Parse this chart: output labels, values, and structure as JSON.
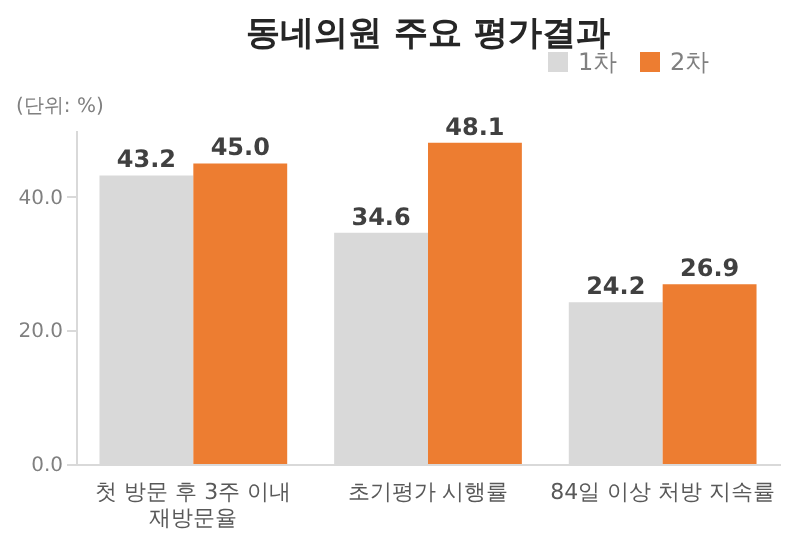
{
  "chart_data": {
    "type": "bar",
    "title": "동네의원 주요 평가결과",
    "annotations": [
      "(단위: %)"
    ],
    "categories": [
      "첫 방문 후 3주 이내\n재방문율",
      "초기평가 시행률",
      "84일 이상 처방 지속률"
    ],
    "series": [
      {
        "name": "1차",
        "color": "#d9d9d9",
        "values": [
          43.2,
          34.6,
          24.2
        ],
        "value_labels": [
          "43.2",
          "34.6",
          "24.2"
        ]
      },
      {
        "name": "2차",
        "color": "#ed7d31",
        "values": [
          45.0,
          48.1,
          26.9
        ],
        "value_labels": [
          "45.0",
          "48.1",
          "26.9"
        ]
      }
    ],
    "ylim": [
      0,
      50
    ],
    "yticks": [
      {
        "value": 0,
        "label": "0.0"
      },
      {
        "value": 20,
        "label": "20.0"
      },
      {
        "value": 40,
        "label": "40.0"
      }
    ],
    "grid": false,
    "legend": "top right"
  }
}
